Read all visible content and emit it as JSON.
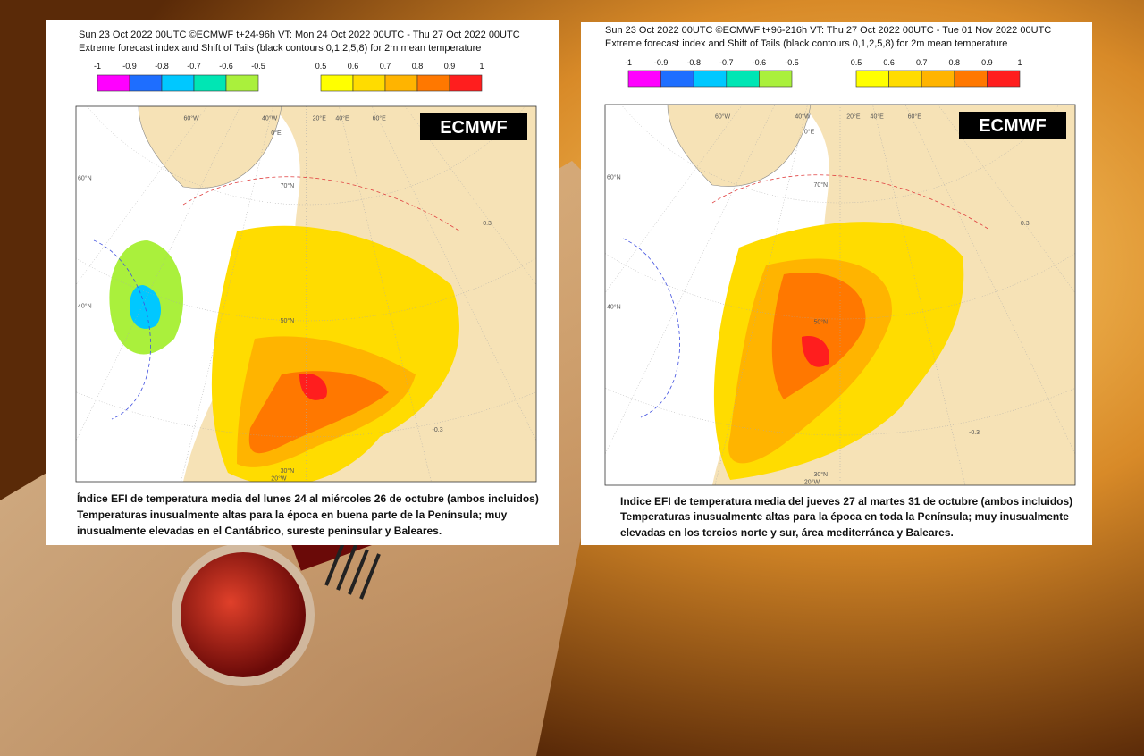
{
  "panels": [
    {
      "header": [
        "Sun 23 Oct 2022 00UTC ©ECMWF t+24-96h  VT: Mon 24 Oct 2022 00UTC - Thu 27 Oct 2022 00UTC",
        "Extreme forecast index and Shift of Tails (black contours 0,1,2,5,8) for 2m mean temperature"
      ],
      "legend": {
        "negative": {
          "labels": [
            "-1",
            "-0.9",
            "-0.8",
            "-0.7",
            "-0.6",
            "-0.5"
          ],
          "colors": [
            "#ff00ff",
            "#1e6eff",
            "#00c8ff",
            "#00e6b4",
            "#aaf03c"
          ]
        },
        "positive": {
          "labels": [
            "0.5",
            "0.6",
            "0.7",
            "0.8",
            "0.9",
            "1"
          ],
          "colors": [
            "#ffff00",
            "#ffdc00",
            "#ffb400",
            "#ff7800",
            "#ff1e1e"
          ]
        }
      },
      "logo": "ECMWF",
      "map_labels": [
        "60°W",
        "40°W",
        "20°W",
        "0°E",
        "20°E",
        "40°E",
        "60°E",
        "60°N",
        "50°N",
        "40°N",
        "30°N",
        "70°N",
        "0.3",
        "-0.3"
      ],
      "caption": [
        "Índice EFI de temperatura media del lunes 24 al miércoles 26 de octubre (ambos incluidos)",
        "Temperaturas inusualmente altas para la época en buena parte de la Península; muy",
        "inusualmente elevadas en el Cantábrico, sureste peninsular y Baleares."
      ]
    },
    {
      "header": [
        "Sun 23 Oct 2022 00UTC ©ECMWF t+96-216h  VT: Thu 27 Oct 2022 00UTC - Tue 01 Nov 2022 00UTC",
        "Extreme forecast index and Shift of Tails (black contours 0,1,2,5,8) for 2m mean temperature"
      ],
      "legend": {
        "negative": {
          "labels": [
            "-1",
            "-0.9",
            "-0.8",
            "-0.7",
            "-0.6",
            "-0.5"
          ],
          "colors": [
            "#ff00ff",
            "#1e6eff",
            "#00c8ff",
            "#00e6b4",
            "#aaf03c"
          ]
        },
        "positive": {
          "labels": [
            "0.5",
            "0.6",
            "0.7",
            "0.8",
            "0.9",
            "1"
          ],
          "colors": [
            "#ffff00",
            "#ffdc00",
            "#ffb400",
            "#ff7800",
            "#ff1e1e"
          ]
        }
      },
      "logo": "ECMWF",
      "map_labels": [
        "60°W",
        "40°W",
        "20°W",
        "0°E",
        "20°E",
        "40°E",
        "60°E",
        "60°N",
        "50°N",
        "40°N",
        "30°N",
        "70°N",
        "0.3",
        "-0.3"
      ],
      "caption": [
        "Indice EFI de temperatura media del jueves 27 al martes 31 de octubre (ambos incluidos)",
        "Temperaturas inusualmente altas para la época en toda la Península; muy inusualmente",
        "elevadas en los tercios norte y sur, área mediterránea y Baleares."
      ]
    }
  ]
}
